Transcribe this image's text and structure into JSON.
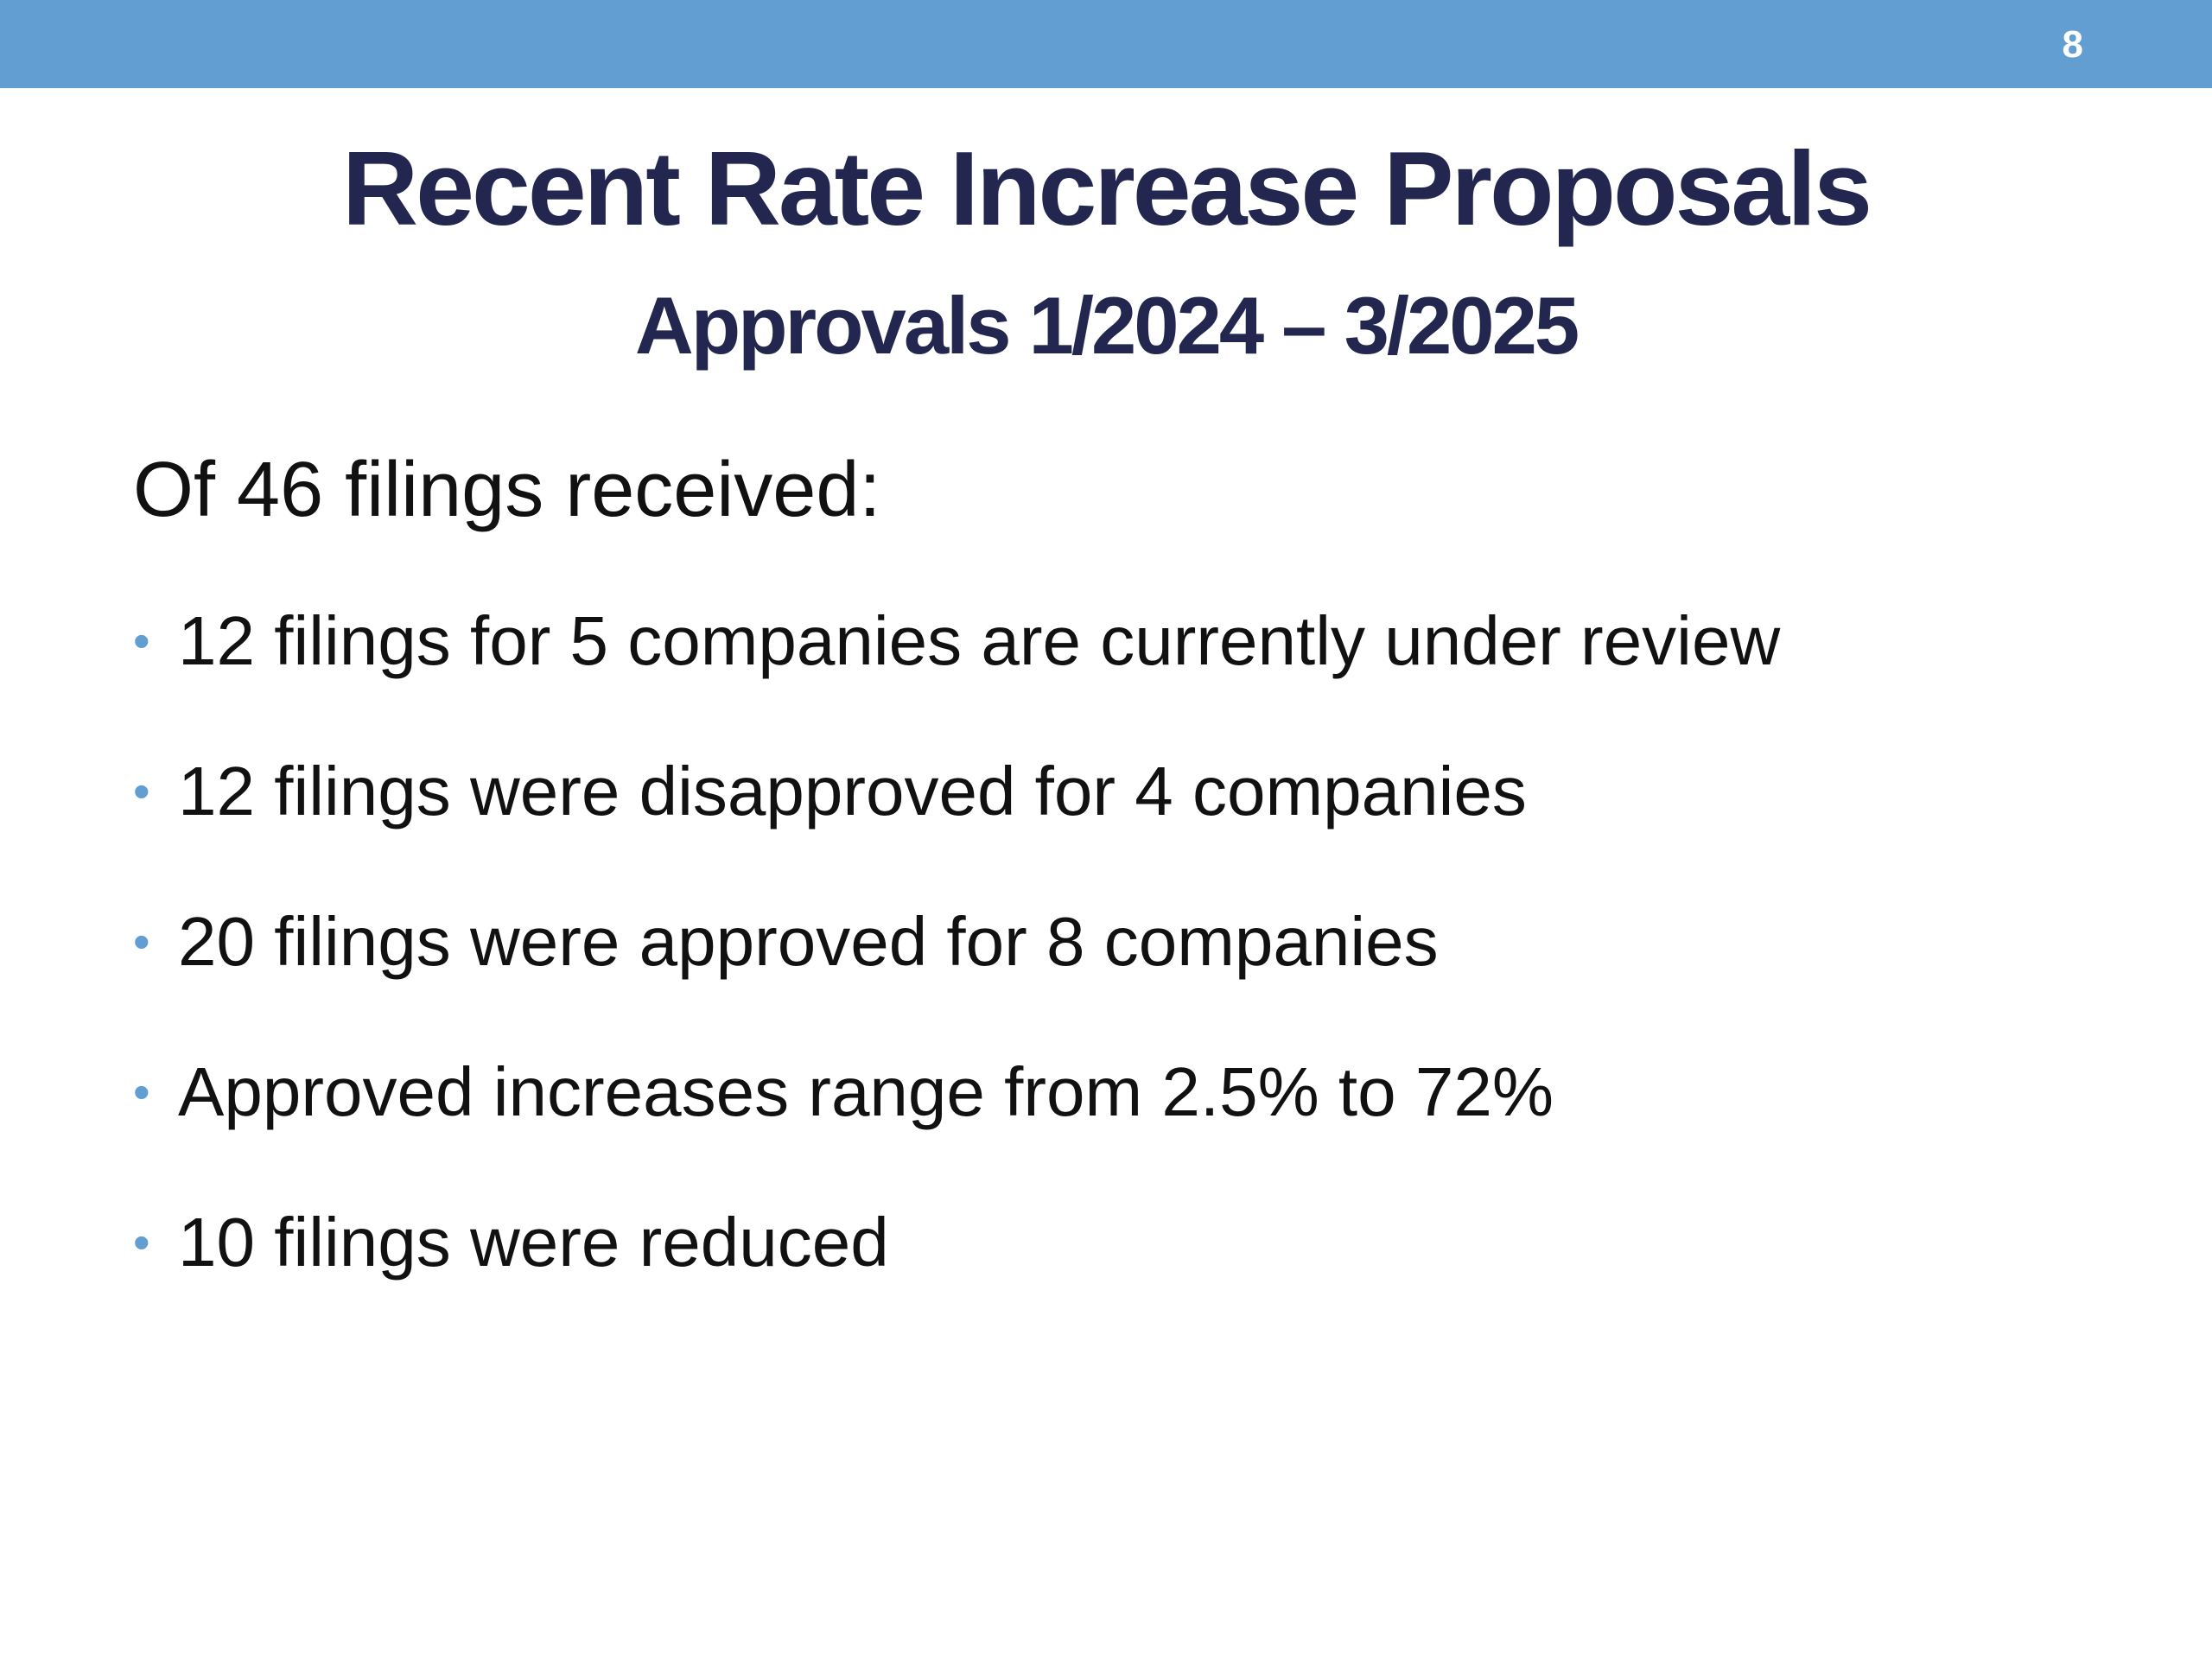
{
  "header": {
    "page_number": "8",
    "bar_color": "#639ed3"
  },
  "title": "Recent Rate Increase Proposals",
  "subtitle": "Approvals 1/2024 – 3/2025",
  "intro": "Of 46 filings received:",
  "bullets": [
    {
      "text": "12 filings for 5 companies are currently under review"
    },
    {
      "text": "12 filings were disapproved for 4 companies"
    },
    {
      "text": "20 filings were approved for 8 companies"
    },
    {
      "text": "Approved increases range from 2.5% to 72%"
    },
    {
      "text": "10 filings were reduced"
    }
  ],
  "colors": {
    "title": "#232750",
    "bullet": "#639ed3",
    "body_text": "#111111"
  }
}
